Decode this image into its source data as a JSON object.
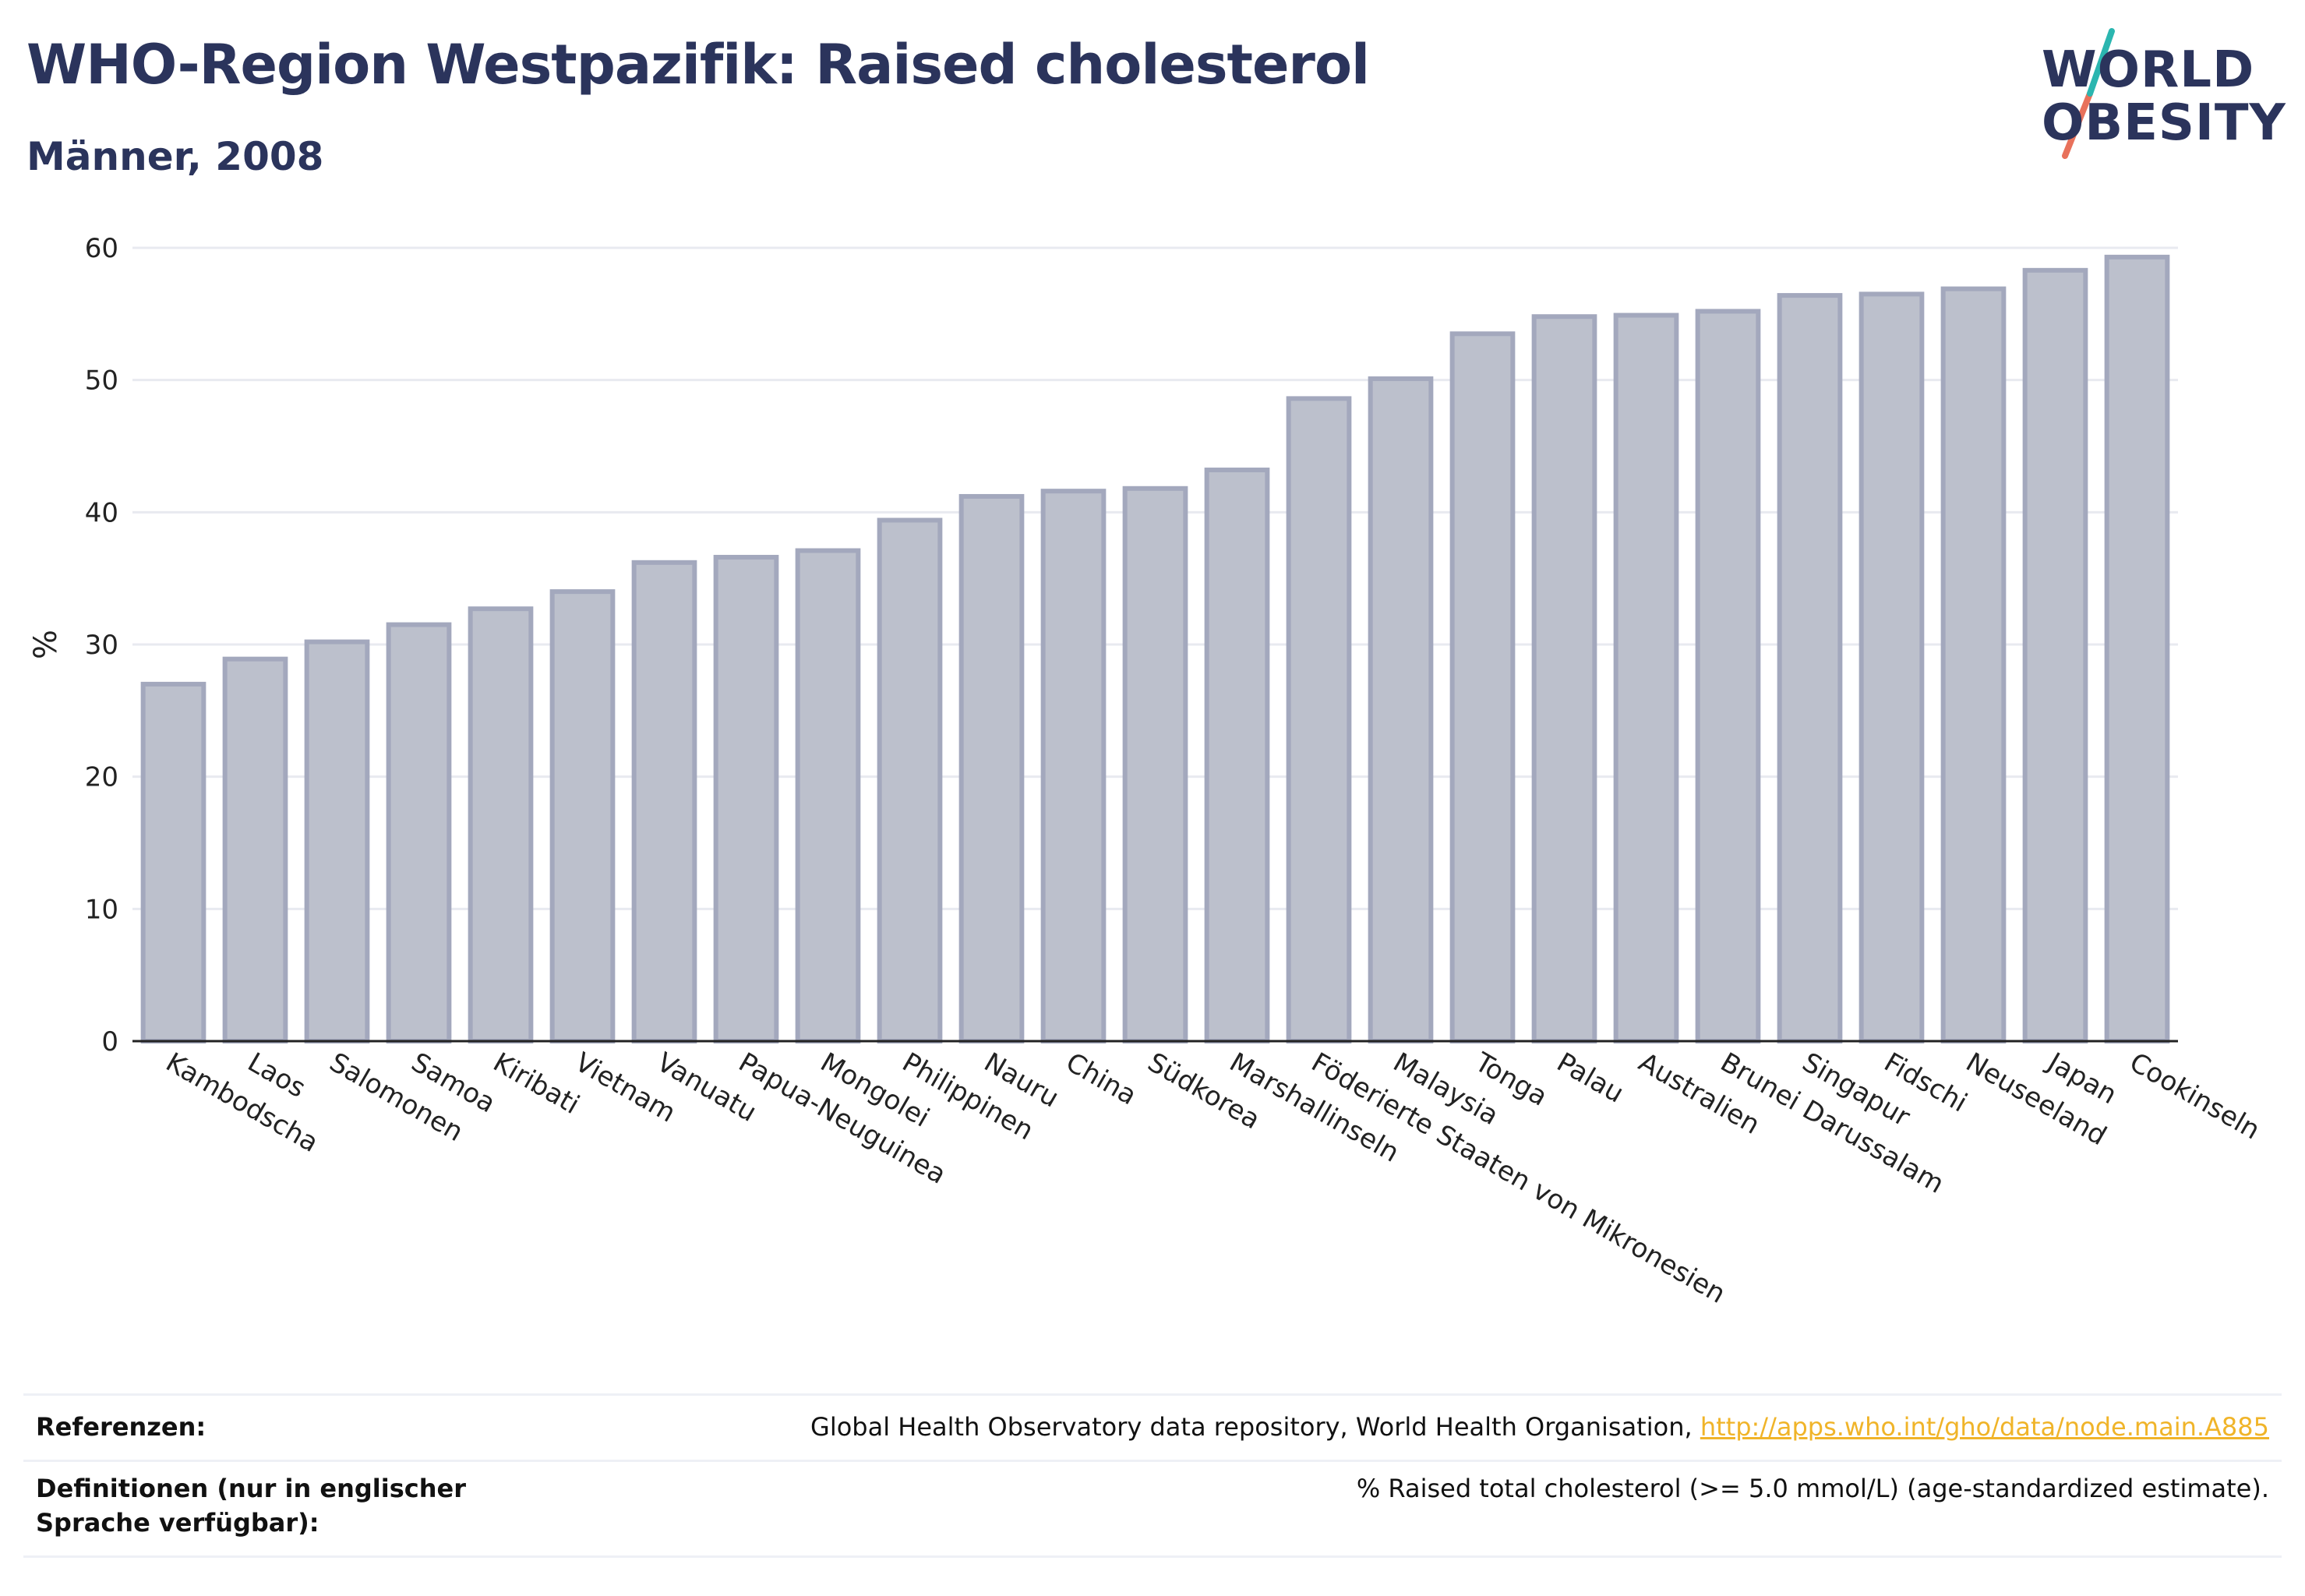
{
  "header": {
    "title": "WHO-Region Westpazifik: Raised cholesterol",
    "subtitle": "Männer, 2008"
  },
  "logo": {
    "line1": "WORLD",
    "line2": "OBESITY",
    "slash_colors": [
      "#e8715b",
      "#2bb6b0"
    ],
    "text_color": "#2b345c"
  },
  "chart_data": {
    "type": "bar",
    "categories": [
      "Kambodscha",
      "Laos",
      "Salomonen",
      "Samoa",
      "Kiribati",
      "Vietnam",
      "Vanuatu",
      "Papua-Neuguinea",
      "Mongolei",
      "Philippinen",
      "Nauru",
      "China",
      "Südkorea",
      "Marshallinseln",
      "Föderierte Staaten von Mikronesien",
      "Malaysia",
      "Tonga",
      "Palau",
      "Australien",
      "Brunei Darussalam",
      "Singapur",
      "Fidschi",
      "Neuseeland",
      "Japan",
      "Cookinseln"
    ],
    "values": [
      27.0,
      28.9,
      30.2,
      31.5,
      32.7,
      34.0,
      36.2,
      36.6,
      37.1,
      39.4,
      41.2,
      41.6,
      41.8,
      43.2,
      48.6,
      50.1,
      53.5,
      54.8,
      54.9,
      55.2,
      56.4,
      56.5,
      56.9,
      58.3,
      59.3
    ],
    "ylabel": "%",
    "ylim": [
      0,
      60
    ],
    "yticks": [
      0,
      10,
      20,
      30,
      40,
      50,
      60
    ],
    "grid": true,
    "bar_color": "#bcc0cc",
    "bar_edge_color": "#a3a8bd"
  },
  "footer": {
    "references_label": "Referenzen:",
    "references_text": "Global Health Observatory data repository, World Health Organisation, ",
    "references_link": "http://apps.who.int/gho/data/node.main.A885",
    "definitions_label": "Definitionen (nur in englischer Sprache verfügbar):",
    "definitions_text": "% Raised total cholesterol (>= 5.0 mmol/L) (age-standardized estimate)."
  }
}
